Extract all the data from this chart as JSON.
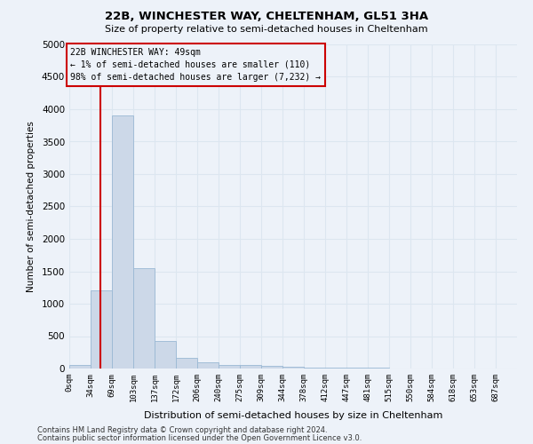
{
  "title_line1": "22B, WINCHESTER WAY, CHELTENHAM, GL51 3HA",
  "title_line2": "Size of property relative to semi-detached houses in Cheltenham",
  "xlabel": "Distribution of semi-detached houses by size in Cheltenham",
  "ylabel": "Number of semi-detached properties",
  "footer_line1": "Contains HM Land Registry data © Crown copyright and database right 2024.",
  "footer_line2": "Contains public sector information licensed under the Open Government Licence v3.0.",
  "annotation_line1": "22B WINCHESTER WAY: 49sqm",
  "annotation_line2": "← 1% of semi-detached houses are smaller (110)",
  "annotation_line3": "98% of semi-detached houses are larger (7,232) →",
  "bar_color": "#ccd8e8",
  "bar_edge_color": "#9ab8d4",
  "grid_color": "#dce6f0",
  "background_color": "#edf2f9",
  "red_line_color": "#cc0000",
  "tick_labels": [
    "0sqm",
    "34sqm",
    "69sqm",
    "103sqm",
    "137sqm",
    "172sqm",
    "206sqm",
    "240sqm",
    "275sqm",
    "309sqm",
    "344sqm",
    "378sqm",
    "412sqm",
    "447sqm",
    "481sqm",
    "515sqm",
    "550sqm",
    "584sqm",
    "618sqm",
    "653sqm",
    "687sqm"
  ],
  "bar_heights": [
    50,
    1200,
    3900,
    1550,
    430,
    160,
    100,
    60,
    50,
    40,
    30,
    20,
    15,
    10,
    8,
    5,
    4,
    3,
    2,
    2,
    1
  ],
  "bin_width": 34,
  "property_size": 49,
  "ylim": [
    0,
    5000
  ],
  "yticks": [
    0,
    500,
    1000,
    1500,
    2000,
    2500,
    3000,
    3500,
    4000,
    4500,
    5000
  ]
}
